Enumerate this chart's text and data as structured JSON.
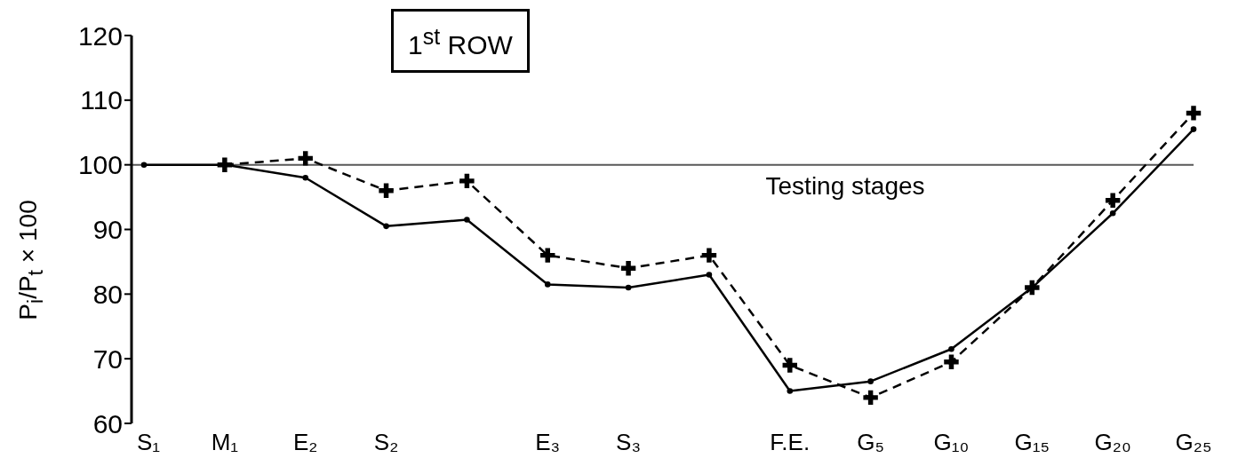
{
  "chart_data": {
    "type": "line",
    "title": "1$^{st}$ ROW",
    "xlabel": "Testing stages",
    "ylabel": "P$_{i}$/P$_{t}$ × 100",
    "categories": [
      "S₁",
      "M₁",
      "E₂",
      "S₂",
      null,
      "E₃",
      "S₃",
      null,
      "F.E.",
      "G₅",
      "G₁₀",
      "G₁₅",
      "G₂₀",
      "G₂₅"
    ],
    "series": [
      {
        "color": "#000000",
        "marker": "circle",
        "line_style": "solid",
        "values": [
          100,
          100,
          98,
          90.5,
          91.5,
          81.5,
          81,
          83,
          65,
          66.5,
          71.5,
          81,
          92.5,
          105.5
        ]
      },
      {
        "color": "#000000",
        "marker": "cross",
        "line_style": "dashed",
        "values": [
          null,
          100,
          101,
          96,
          97.5,
          86,
          84,
          86,
          69,
          64,
          69.5,
          81,
          94.5,
          108
        ]
      }
    ],
    "ylim": [
      60,
      120
    ],
    "yticks": [
      60,
      70,
      80,
      90,
      100,
      110,
      120
    ],
    "ref_lines": [
      {
        "axis": "y",
        "value": 100
      }
    ]
  }
}
